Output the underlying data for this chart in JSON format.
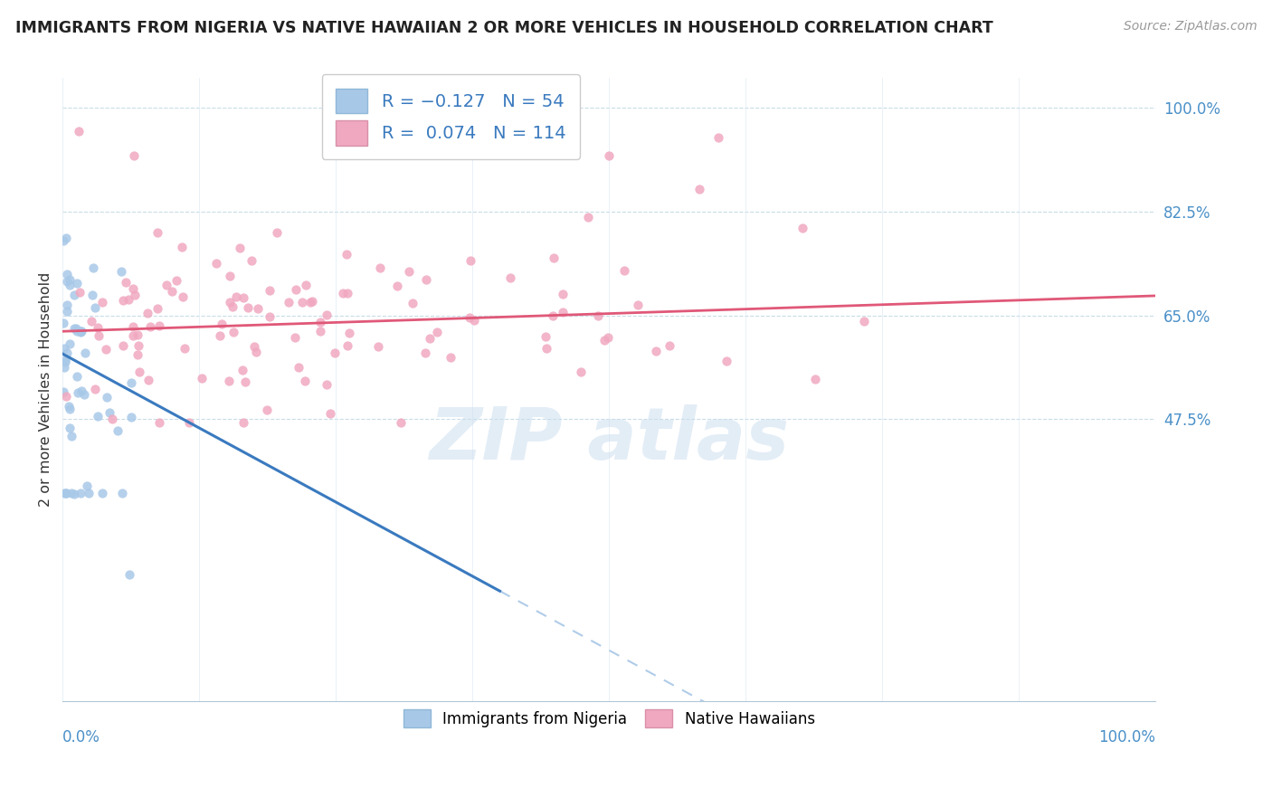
{
  "title": "IMMIGRANTS FROM NIGERIA VS NATIVE HAWAIIAN 2 OR MORE VEHICLES IN HOUSEHOLD CORRELATION CHART",
  "source": "Source: ZipAtlas.com",
  "ylabel": "2 or more Vehicles in Household",
  "y_tick_vals": [
    0.475,
    0.65,
    0.825,
    1.0
  ],
  "y_tick_labels": [
    "47.5%",
    "65.0%",
    "82.5%",
    "100.0%"
  ],
  "blue_color": "#a8c8e8",
  "pink_color": "#f0a8c0",
  "blue_line_color": "#3a7abf",
  "pink_line_color": "#e05878",
  "blue_dash_color": "#b0cce8",
  "blue_N": 54,
  "pink_N": 114,
  "blue_R": -0.127,
  "pink_R": 0.074,
  "xmin": 0.0,
  "xmax": 1.0,
  "ymin": 0.0,
  "ymax": 1.05,
  "watermark_color": "#ccdff0",
  "grid_color": "#c8dce8"
}
